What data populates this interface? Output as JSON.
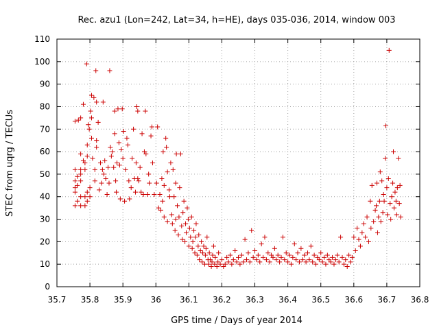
{
  "chart_data": {
    "type": "scatter",
    "title": "Rec. azu1 (Lon=242, Lat=34, h=HE), days 035-036, 2014, window 003",
    "xlabel": "GPS time / Days of year 2014",
    "ylabel": "STEC from uqrg / TECUs",
    "xlim": [
      35.7,
      36.8
    ],
    "ylim": [
      0,
      110
    ],
    "xticks": [
      "35.7",
      "35.8",
      "35.9",
      "36",
      "36.1",
      "36.2",
      "36.3",
      "36.4",
      "36.5",
      "36.6",
      "36.7",
      "36.8"
    ],
    "yticks": [
      "0",
      "10",
      "20",
      "30",
      "40",
      "50",
      "60",
      "70",
      "80",
      "90",
      "100",
      "110"
    ],
    "grid": true,
    "marker": "+",
    "color": "#cc0000",
    "series": [
      {
        "name": "",
        "points": [
          [
            35.755,
            36
          ],
          [
            35.755,
            42
          ],
          [
            35.755,
            44
          ],
          [
            35.755,
            47
          ],
          [
            35.755,
            52
          ],
          [
            35.755,
            73.5
          ],
          [
            35.762,
            38
          ],
          [
            35.762,
            45
          ],
          [
            35.762,
            49
          ],
          [
            35.765,
            74
          ],
          [
            35.772,
            36
          ],
          [
            35.772,
            40
          ],
          [
            35.772,
            47
          ],
          [
            35.772,
            50
          ],
          [
            35.772,
            52
          ],
          [
            35.772,
            59
          ],
          [
            35.772,
            75
          ],
          [
            35.78,
            56
          ],
          [
            35.78,
            81
          ],
          [
            35.785,
            36
          ],
          [
            35.785,
            40
          ],
          [
            35.785,
            52
          ],
          [
            35.785,
            55
          ],
          [
            35.79,
            99
          ],
          [
            35.792,
            38
          ],
          [
            35.792,
            42
          ],
          [
            35.792,
            58
          ],
          [
            35.792,
            63
          ],
          [
            35.795,
            72
          ],
          [
            35.798,
            70
          ],
          [
            35.8,
            40
          ],
          [
            35.8,
            44
          ],
          [
            35.802,
            78
          ],
          [
            35.805,
            85
          ],
          [
            35.805,
            75
          ],
          [
            35.805,
            66
          ],
          [
            35.808,
            57
          ],
          [
            35.812,
            84
          ],
          [
            35.815,
            47
          ],
          [
            35.815,
            52
          ],
          [
            35.818,
            96
          ],
          [
            35.82,
            82
          ],
          [
            35.82,
            65
          ],
          [
            35.82,
            62
          ],
          [
            35.825,
            73
          ],
          [
            35.828,
            43
          ],
          [
            35.832,
            55
          ],
          [
            35.835,
            46
          ],
          [
            35.838,
            52
          ],
          [
            35.84,
            82
          ],
          [
            35.842,
            50
          ],
          [
            35.845,
            56
          ],
          [
            35.848,
            48
          ],
          [
            35.852,
            41
          ],
          [
            35.855,
            53
          ],
          [
            35.858,
            46
          ],
          [
            35.86,
            96
          ],
          [
            35.862,
            62
          ],
          [
            35.865,
            58
          ],
          [
            35.868,
            60
          ],
          [
            35.872,
            53
          ],
          [
            35.875,
            78
          ],
          [
            35.875,
            68
          ],
          [
            35.878,
            47
          ],
          [
            35.88,
            42
          ],
          [
            35.882,
            55
          ],
          [
            35.885,
            79
          ],
          [
            35.888,
            64
          ],
          [
            35.89,
            54
          ],
          [
            35.892,
            39
          ],
          [
            35.895,
            61
          ],
          [
            35.898,
            79
          ],
          [
            35.9,
            57
          ],
          [
            35.902,
            69
          ],
          [
            35.905,
            38
          ],
          [
            35.908,
            52
          ],
          [
            35.912,
            66
          ],
          [
            35.915,
            63
          ],
          [
            35.918,
            47
          ],
          [
            35.92,
            39
          ],
          [
            35.925,
            44
          ],
          [
            35.928,
            57
          ],
          [
            35.932,
            70
          ],
          [
            35.935,
            48
          ],
          [
            35.938,
            42
          ],
          [
            35.94,
            55
          ],
          [
            35.942,
            80
          ],
          [
            35.945,
            78
          ],
          [
            35.945,
            48
          ],
          [
            35.948,
            47
          ],
          [
            35.952,
            53
          ],
          [
            35.955,
            42
          ],
          [
            35.958,
            68
          ],
          [
            35.962,
            41
          ],
          [
            35.965,
            60
          ],
          [
            35.968,
            78
          ],
          [
            35.97,
            59
          ],
          [
            35.975,
            41
          ],
          [
            35.978,
            50
          ],
          [
            35.98,
            46
          ],
          [
            35.985,
            67
          ],
          [
            35.988,
            71
          ],
          [
            35.99,
            55
          ],
          [
            35.995,
            41
          ],
          [
            36.002,
            46
          ],
          [
            36.005,
            71
          ],
          [
            36.008,
            35
          ],
          [
            36.012,
            41
          ],
          [
            36.015,
            34
          ],
          [
            36.018,
            48
          ],
          [
            36.02,
            38
          ],
          [
            36.022,
            60
          ],
          [
            36.025,
            31
          ],
          [
            36.025,
            45
          ],
          [
            36.03,
            66
          ],
          [
            36.032,
            62
          ],
          [
            36.035,
            29
          ],
          [
            36.035,
            51
          ],
          [
            36.04,
            43
          ],
          [
            36.042,
            40
          ],
          [
            36.045,
            55
          ],
          [
            36.048,
            32
          ],
          [
            36.05,
            28
          ],
          [
            36.052,
            52
          ],
          [
            36.055,
            40
          ],
          [
            36.058,
            25
          ],
          [
            36.06,
            30
          ],
          [
            36.06,
            46
          ],
          [
            36.062,
            59
          ],
          [
            36.065,
            36
          ],
          [
            36.068,
            23
          ],
          [
            36.07,
            31
          ],
          [
            36.072,
            44
          ],
          [
            36.075,
            59
          ],
          [
            36.078,
            27
          ],
          [
            36.08,
            21
          ],
          [
            36.082,
            33
          ],
          [
            36.085,
            38
          ],
          [
            36.088,
            20
          ],
          [
            36.09,
            28
          ],
          [
            36.092,
            24
          ],
          [
            36.095,
            35
          ],
          [
            36.098,
            30
          ],
          [
            36.1,
            18
          ],
          [
            36.102,
            26
          ],
          [
            36.105,
            22
          ],
          [
            36.108,
            31
          ],
          [
            36.11,
            17
          ],
          [
            36.112,
            20
          ],
          [
            36.115,
            25
          ],
          [
            36.118,
            15
          ],
          [
            36.12,
            22
          ],
          [
            36.122,
            28
          ],
          [
            36.125,
            14
          ],
          [
            36.128,
            18
          ],
          [
            36.13,
            23
          ],
          [
            36.132,
            12
          ],
          [
            36.135,
            16
          ],
          [
            36.138,
            20
          ],
          [
            36.14,
            11
          ],
          [
            36.142,
            15
          ],
          [
            36.145,
            18
          ],
          [
            36.148,
            10
          ],
          [
            36.15,
            14
          ],
          [
            36.152,
            17
          ],
          [
            36.155,
            22
          ],
          [
            36.158,
            12
          ],
          [
            36.16,
            10
          ],
          [
            36.162,
            15
          ],
          [
            36.165,
            12
          ],
          [
            36.168,
            9
          ],
          [
            36.17,
            11
          ],
          [
            36.172,
            14
          ],
          [
            36.175,
            18
          ],
          [
            36.178,
            10
          ],
          [
            36.18,
            13
          ],
          [
            36.185,
            9
          ],
          [
            36.188,
            11
          ],
          [
            36.19,
            15
          ],
          [
            36.195,
            10
          ],
          [
            36.2,
            12
          ],
          [
            36.205,
            9
          ],
          [
            36.21,
            10
          ],
          [
            36.215,
            13
          ],
          [
            36.22,
            11
          ],
          [
            36.225,
            14
          ],
          [
            36.23,
            10
          ],
          [
            36.235,
            12
          ],
          [
            36.24,
            16
          ],
          [
            36.245,
            11
          ],
          [
            36.25,
            13
          ],
          [
            36.255,
            10
          ],
          [
            36.26,
            14
          ],
          [
            36.265,
            11
          ],
          [
            36.27,
            21
          ],
          [
            36.275,
            12
          ],
          [
            36.28,
            15
          ],
          [
            36.285,
            11
          ],
          [
            36.29,
            25
          ],
          [
            36.295,
            13
          ],
          [
            36.3,
            16
          ],
          [
            36.305,
            12
          ],
          [
            36.31,
            14
          ],
          [
            36.315,
            11
          ],
          [
            36.32,
            19
          ],
          [
            36.325,
            13
          ],
          [
            36.33,
            22
          ],
          [
            36.335,
            12
          ],
          [
            36.34,
            15
          ],
          [
            36.345,
            11
          ],
          [
            36.35,
            14
          ],
          [
            36.355,
            13
          ],
          [
            36.36,
            17
          ],
          [
            36.365,
            12
          ],
          [
            36.37,
            14
          ],
          [
            36.375,
            11
          ],
          [
            36.38,
            13
          ],
          [
            36.385,
            22
          ],
          [
            36.39,
            12
          ],
          [
            36.395,
            15
          ],
          [
            36.4,
            11
          ],
          [
            36.405,
            14
          ],
          [
            36.41,
            10
          ],
          [
            36.415,
            13
          ],
          [
            36.42,
            19
          ],
          [
            36.425,
            12
          ],
          [
            36.43,
            15
          ],
          [
            36.435,
            11
          ],
          [
            36.44,
            17
          ],
          [
            36.445,
            12
          ],
          [
            36.45,
            14
          ],
          [
            36.455,
            11
          ],
          [
            36.46,
            15
          ],
          [
            36.465,
            12
          ],
          [
            36.47,
            18
          ],
          [
            36.475,
            11
          ],
          [
            36.48,
            14
          ],
          [
            36.485,
            10
          ],
          [
            36.49,
            13
          ],
          [
            36.495,
            12
          ],
          [
            36.5,
            15
          ],
          [
            36.505,
            11
          ],
          [
            36.51,
            13
          ],
          [
            36.515,
            10
          ],
          [
            36.52,
            14
          ],
          [
            36.525,
            12
          ],
          [
            36.53,
            11
          ],
          [
            36.535,
            13
          ],
          [
            36.54,
            10
          ],
          [
            36.545,
            12
          ],
          [
            36.55,
            14
          ],
          [
            36.555,
            11
          ],
          [
            36.56,
            22
          ],
          [
            36.565,
            13
          ],
          [
            36.57,
            10
          ],
          [
            36.575,
            12
          ],
          [
            36.58,
            9
          ],
          [
            36.585,
            14
          ],
          [
            36.59,
            11
          ],
          [
            36.595,
            13
          ],
          [
            36.6,
            22
          ],
          [
            36.605,
            16
          ],
          [
            36.61,
            26
          ],
          [
            36.615,
            21
          ],
          [
            36.62,
            18
          ],
          [
            36.625,
            24
          ],
          [
            36.63,
            28
          ],
          [
            36.635,
            22
          ],
          [
            36.64,
            31
          ],
          [
            36.645,
            20
          ],
          [
            36.65,
            38
          ],
          [
            36.652,
            26
          ],
          [
            36.655,
            45
          ],
          [
            36.66,
            29
          ],
          [
            36.665,
            34
          ],
          [
            36.668,
            36
          ],
          [
            36.67,
            46
          ],
          [
            36.672,
            24
          ],
          [
            36.675,
            31
          ],
          [
            36.678,
            38
          ],
          [
            36.68,
            51
          ],
          [
            36.682,
            29
          ],
          [
            36.685,
            47
          ],
          [
            36.688,
            33
          ],
          [
            36.69,
            41
          ],
          [
            36.692,
            38
          ],
          [
            36.695,
            57
          ],
          [
            36.697,
            71.5
          ],
          [
            36.7,
            44
          ],
          [
            36.702,
            32
          ],
          [
            36.705,
            48
          ],
          [
            36.707,
            105
          ],
          [
            36.71,
            37
          ],
          [
            36.712,
            30
          ],
          [
            36.715,
            40
          ],
          [
            36.718,
            46
          ],
          [
            36.72,
            60
          ],
          [
            36.722,
            35
          ],
          [
            36.725,
            42
          ],
          [
            36.728,
            38
          ],
          [
            36.73,
            32
          ],
          [
            36.732,
            44
          ],
          [
            36.735,
            57
          ],
          [
            36.738,
            37
          ],
          [
            36.74,
            45
          ],
          [
            36.742,
            31
          ]
        ]
      }
    ]
  }
}
